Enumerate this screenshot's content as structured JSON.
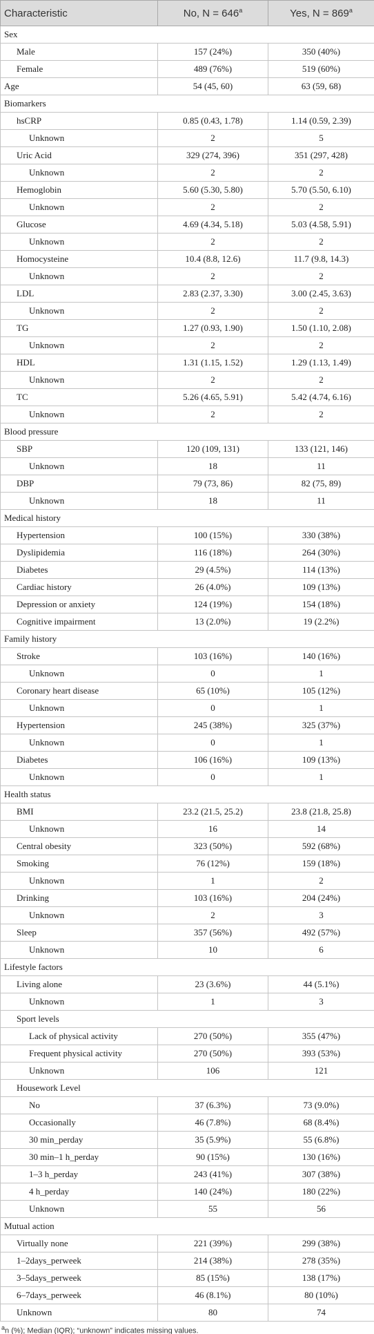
{
  "table": {
    "header": [
      {
        "text": "Characteristic"
      },
      {
        "text": "No, N = 646",
        "sup": "a"
      },
      {
        "text": "Yes, N = 869",
        "sup": "a"
      }
    ],
    "sections": [
      {
        "label": "Sex",
        "items": [
          {
            "label": "Male",
            "no": "157 (24%)",
            "yes": "350 (40%)"
          },
          {
            "label": "Female",
            "no": "489 (76%)",
            "yes": "519 (60%)"
          }
        ]
      },
      {
        "label": "Age",
        "no": "54 (45, 60)",
        "yes": "63 (59, 68)"
      },
      {
        "label": "Biomarkers",
        "items": [
          {
            "label": "hsCRP",
            "no": "0.85 (0.43, 1.78)",
            "yes": "1.14 (0.59, 2.39)",
            "items": [
              {
                "label": "Unknown",
                "no": "2",
                "yes": "5"
              }
            ]
          },
          {
            "label": "Uric Acid",
            "no": "329 (274, 396)",
            "yes": "351 (297, 428)",
            "items": [
              {
                "label": "Unknown",
                "no": "2",
                "yes": "2"
              }
            ]
          },
          {
            "label": "Hemoglobin",
            "no": "5.60 (5.30, 5.80)",
            "yes": "5.70 (5.50, 6.10)",
            "items": [
              {
                "label": "Unknown",
                "no": "2",
                "yes": "2"
              }
            ]
          },
          {
            "label": "Glucose",
            "no": "4.69 (4.34, 5.18)",
            "yes": "5.03 (4.58, 5.91)",
            "items": [
              {
                "label": "Unknown",
                "no": "2",
                "yes": "2"
              }
            ]
          },
          {
            "label": "Homocysteine",
            "no": "10.4 (8.8, 12.6)",
            "yes": "11.7 (9.8, 14.3)",
            "items": [
              {
                "label": "Unknown",
                "no": "2",
                "yes": "2"
              }
            ]
          },
          {
            "label": "LDL",
            "no": "2.83 (2.37, 3.30)",
            "yes": "3.00 (2.45, 3.63)",
            "items": [
              {
                "label": "Unknown",
                "no": "2",
                "yes": "2"
              }
            ]
          },
          {
            "label": "TG",
            "no": "1.27 (0.93, 1.90)",
            "yes": "1.50 (1.10, 2.08)",
            "items": [
              {
                "label": "Unknown",
                "no": "2",
                "yes": "2"
              }
            ]
          },
          {
            "label": "HDL",
            "no": "1.31 (1.15, 1.52)",
            "yes": "1.29 (1.13, 1.49)",
            "items": [
              {
                "label": "Unknown",
                "no": "2",
                "yes": "2"
              }
            ]
          },
          {
            "label": "TC",
            "no": "5.26 (4.65, 5.91)",
            "yes": "5.42 (4.74, 6.16)",
            "items": [
              {
                "label": "Unknown",
                "no": "2",
                "yes": "2"
              }
            ]
          }
        ]
      },
      {
        "label": "Blood pressure",
        "items": [
          {
            "label": "SBP",
            "no": "120 (109, 131)",
            "yes": "133 (121, 146)",
            "items": [
              {
                "label": "Unknown",
                "no": "18",
                "yes": "11"
              }
            ]
          },
          {
            "label": "DBP",
            "no": "79 (73, 86)",
            "yes": "82 (75, 89)",
            "items": [
              {
                "label": "Unknown",
                "no": "18",
                "yes": "11"
              }
            ]
          }
        ]
      },
      {
        "label": "Medical history",
        "items": [
          {
            "label": "Hypertension",
            "no": "100 (15%)",
            "yes": "330 (38%)"
          },
          {
            "label": "Dyslipidemia",
            "no": "116 (18%)",
            "yes": "264 (30%)"
          },
          {
            "label": "Diabetes",
            "no": "29 (4.5%)",
            "yes": "114 (13%)"
          },
          {
            "label": "Cardiac history",
            "no": "26 (4.0%)",
            "yes": "109 (13%)"
          },
          {
            "label": "Depression or anxiety",
            "no": "124 (19%)",
            "yes": "154 (18%)"
          },
          {
            "label": "Cognitive impairment",
            "no": "13 (2.0%)",
            "yes": "19 (2.2%)"
          }
        ]
      },
      {
        "label": "Family history",
        "items": [
          {
            "label": "Stroke",
            "no": "103 (16%)",
            "yes": "140 (16%)",
            "items": [
              {
                "label": "Unknown",
                "no": "0",
                "yes": "1"
              }
            ]
          },
          {
            "label": "Coronary heart disease",
            "no": "65 (10%)",
            "yes": "105 (12%)",
            "items": [
              {
                "label": "Unknown",
                "no": "0",
                "yes": "1"
              }
            ]
          },
          {
            "label": "Hypertension",
            "no": "245 (38%)",
            "yes": "325 (37%)",
            "items": [
              {
                "label": "Unknown",
                "no": "0",
                "yes": "1"
              }
            ]
          },
          {
            "label": "Diabetes",
            "no": "106 (16%)",
            "yes": "109 (13%)",
            "items": [
              {
                "label": "Unknown",
                "no": "0",
                "yes": "1"
              }
            ]
          }
        ]
      },
      {
        "label": "Health status",
        "items": [
          {
            "label": "BMI",
            "no": "23.2 (21.5, 25.2)",
            "yes": "23.8 (21.8, 25.8)",
            "items": [
              {
                "label": "Unknown",
                "no": "16",
                "yes": "14"
              }
            ]
          },
          {
            "label": "Central obesity",
            "no": "323 (50%)",
            "yes": "592 (68%)"
          },
          {
            "label": "Smoking",
            "no": "76 (12%)",
            "yes": "159 (18%)",
            "items": [
              {
                "label": "Unknown",
                "no": "1",
                "yes": "2"
              }
            ]
          },
          {
            "label": "Drinking",
            "no": "103 (16%)",
            "yes": "204 (24%)",
            "items": [
              {
                "label": "Unknown",
                "no": "2",
                "yes": "3"
              }
            ]
          },
          {
            "label": "Sleep",
            "no": "357 (56%)",
            "yes": "492 (57%)",
            "items": [
              {
                "label": "Unknown",
                "no": "10",
                "yes": "6"
              }
            ]
          }
        ]
      },
      {
        "label": "Lifestyle factors",
        "items": [
          {
            "label": "Living alone",
            "no": "23 (3.6%)",
            "yes": "44 (5.1%)",
            "items": [
              {
                "label": "Unknown",
                "no": "1",
                "yes": "3"
              }
            ]
          },
          {
            "label": "Sport levels",
            "items": [
              {
                "label": "Lack of physical activity",
                "no": "270 (50%)",
                "yes": "355 (47%)"
              },
              {
                "label": "Frequent physical activity",
                "no": "270 (50%)",
                "yes": "393 (53%)"
              },
              {
                "label": "Unknown",
                "no": "106",
                "yes": "121"
              }
            ]
          },
          {
            "label": "Housework Level",
            "items": [
              {
                "label": "No",
                "no": "37 (6.3%)",
                "yes": "73 (9.0%)"
              },
              {
                "label": "Occasionally",
                "no": "46 (7.8%)",
                "yes": "68 (8.4%)"
              },
              {
                "label": "30 min_perday",
                "no": "35 (5.9%)",
                "yes": "55 (6.8%)"
              },
              {
                "label": "30 min–1 h_perday",
                "no": "90 (15%)",
                "yes": "130 (16%)"
              },
              {
                "label": "1–3 h_perday",
                "no": "243 (41%)",
                "yes": "307 (38%)"
              },
              {
                "label": "4 h_perday",
                "no": "140 (24%)",
                "yes": "180 (22%)"
              },
              {
                "label": "Unknown",
                "no": "55",
                "yes": "56"
              }
            ]
          }
        ]
      },
      {
        "label": "Mutual action",
        "items": [
          {
            "label": "Virtually none",
            "no": "221 (39%)",
            "yes": "299 (38%)"
          },
          {
            "label": "1–2days_perweek",
            "no": "214 (38%)",
            "yes": "278 (35%)"
          },
          {
            "label": "3–5days_perweek",
            "no": "85 (15%)",
            "yes": "138 (17%)"
          },
          {
            "label": "6–7days_perweek",
            "no": "46 (8.1%)",
            "yes": "80 (10%)"
          },
          {
            "label": "Unknown",
            "no": "80",
            "yes": "74"
          }
        ]
      }
    ],
    "footnote": {
      "sup": "a",
      "text": "n (%); Median (IQR); “unknown” indicates missing values."
    }
  }
}
